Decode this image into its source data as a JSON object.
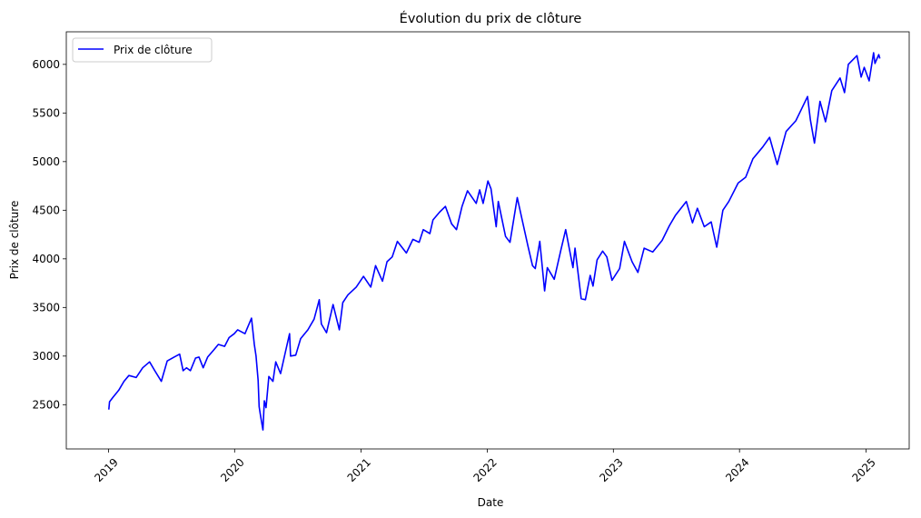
{
  "chart_data": {
    "type": "line",
    "title": "Évolution du prix de clôture",
    "xlabel": "Date",
    "ylabel": "Prix de clôture",
    "xlim": [
      "2018-09-01",
      "2025-05-06"
    ],
    "ylim": [
      2045,
      6335
    ],
    "grid": false,
    "legend_position": "top-left",
    "x_ticks": [
      "2019-01-01",
      "2020-01-01",
      "2021-01-01",
      "2022-01-01",
      "2023-01-01",
      "2024-01-01",
      "2025-01-01"
    ],
    "x_tick_labels": [
      "2019",
      "2020",
      "2021",
      "2022",
      "2023",
      "2024",
      "2025"
    ],
    "y_ticks": [
      2500,
      3000,
      3500,
      4000,
      4500,
      5000,
      5500,
      6000
    ],
    "y_tick_labels": [
      "2500",
      "3000",
      "3500",
      "4000",
      "4500",
      "5000",
      "5500",
      "6000"
    ],
    "series": [
      {
        "name": "Prix de clôture",
        "color": "#0000ff",
        "points": [
          [
            "2019-01-02",
            2450
          ],
          [
            "2019-01-04",
            2530
          ],
          [
            "2019-01-15",
            2580
          ],
          [
            "2019-01-31",
            2650
          ],
          [
            "2019-02-15",
            2740
          ],
          [
            "2019-03-01",
            2800
          ],
          [
            "2019-03-22",
            2780
          ],
          [
            "2019-04-10",
            2880
          ],
          [
            "2019-04-30",
            2940
          ],
          [
            "2019-05-15",
            2850
          ],
          [
            "2019-06-03",
            2740
          ],
          [
            "2019-06-20",
            2950
          ],
          [
            "2019-07-10",
            2990
          ],
          [
            "2019-07-26",
            3020
          ],
          [
            "2019-08-05",
            2850
          ],
          [
            "2019-08-15",
            2880
          ],
          [
            "2019-08-26",
            2850
          ],
          [
            "2019-09-10",
            2980
          ],
          [
            "2019-09-20",
            2990
          ],
          [
            "2019-10-02",
            2880
          ],
          [
            "2019-10-15",
            2990
          ],
          [
            "2019-11-01",
            3060
          ],
          [
            "2019-11-15",
            3120
          ],
          [
            "2019-12-03",
            3100
          ],
          [
            "2019-12-16",
            3190
          ],
          [
            "2019-12-31",
            3230
          ],
          [
            "2020-01-10",
            3270
          ],
          [
            "2020-01-31",
            3230
          ],
          [
            "2020-02-19",
            3390
          ],
          [
            "2020-02-27",
            3120
          ],
          [
            "2020-03-03",
            3000
          ],
          [
            "2020-03-09",
            2750
          ],
          [
            "2020-03-12",
            2480
          ],
          [
            "2020-03-16",
            2390
          ],
          [
            "2020-03-23",
            2240
          ],
          [
            "2020-03-27",
            2540
          ],
          [
            "2020-04-01",
            2470
          ],
          [
            "2020-04-09",
            2790
          ],
          [
            "2020-04-21",
            2740
          ],
          [
            "2020-04-29",
            2940
          ],
          [
            "2020-05-13",
            2820
          ],
          [
            "2020-05-27",
            3040
          ],
          [
            "2020-06-08",
            3230
          ],
          [
            "2020-06-11",
            3000
          ],
          [
            "2020-06-26",
            3010
          ],
          [
            "2020-07-10",
            3180
          ],
          [
            "2020-07-31",
            3270
          ],
          [
            "2020-08-18",
            3380
          ],
          [
            "2020-09-02",
            3580
          ],
          [
            "2020-09-08",
            3330
          ],
          [
            "2020-09-23",
            3240
          ],
          [
            "2020-10-12",
            3530
          ],
          [
            "2020-10-30",
            3270
          ],
          [
            "2020-11-09",
            3550
          ],
          [
            "2020-11-24",
            3630
          ],
          [
            "2020-12-18",
            3710
          ],
          [
            "2021-01-08",
            3820
          ],
          [
            "2021-01-29",
            3710
          ],
          [
            "2021-02-12",
            3930
          ],
          [
            "2021-03-04",
            3770
          ],
          [
            "2021-03-17",
            3970
          ],
          [
            "2021-04-01",
            4020
          ],
          [
            "2021-04-16",
            4180
          ],
          [
            "2021-05-12",
            4060
          ],
          [
            "2021-05-31",
            4200
          ],
          [
            "2021-06-18",
            4170
          ],
          [
            "2021-06-30",
            4300
          ],
          [
            "2021-07-19",
            4260
          ],
          [
            "2021-07-28",
            4400
          ],
          [
            "2021-08-16",
            4480
          ],
          [
            "2021-09-02",
            4540
          ],
          [
            "2021-09-20",
            4360
          ],
          [
            "2021-10-04",
            4300
          ],
          [
            "2021-10-20",
            4540
          ],
          [
            "2021-11-05",
            4700
          ],
          [
            "2021-11-30",
            4570
          ],
          [
            "2021-12-10",
            4710
          ],
          [
            "2021-12-20",
            4570
          ],
          [
            "2022-01-03",
            4800
          ],
          [
            "2022-01-12",
            4720
          ],
          [
            "2022-01-27",
            4330
          ],
          [
            "2022-02-02",
            4590
          ],
          [
            "2022-02-23",
            4230
          ],
          [
            "2022-03-08",
            4170
          ],
          [
            "2022-03-29",
            4630
          ],
          [
            "2022-04-12",
            4400
          ],
          [
            "2022-04-29",
            4130
          ],
          [
            "2022-05-12",
            3930
          ],
          [
            "2022-05-20",
            3900
          ],
          [
            "2022-06-02",
            4180
          ],
          [
            "2022-06-16",
            3670
          ],
          [
            "2022-06-24",
            3910
          ],
          [
            "2022-07-14",
            3790
          ],
          [
            "2022-08-02",
            4090
          ],
          [
            "2022-08-16",
            4300
          ],
          [
            "2022-09-06",
            3910
          ],
          [
            "2022-09-12",
            4110
          ],
          [
            "2022-09-30",
            3590
          ],
          [
            "2022-10-12",
            3580
          ],
          [
            "2022-10-26",
            3830
          ],
          [
            "2022-11-03",
            3720
          ],
          [
            "2022-11-15",
            3990
          ],
          [
            "2022-12-01",
            4080
          ],
          [
            "2022-12-13",
            4020
          ],
          [
            "2022-12-28",
            3780
          ],
          [
            "2023-01-19",
            3900
          ],
          [
            "2023-02-02",
            4180
          ],
          [
            "2023-02-24",
            3970
          ],
          [
            "2023-03-13",
            3860
          ],
          [
            "2023-03-31",
            4110
          ],
          [
            "2023-04-25",
            4070
          ],
          [
            "2023-05-22",
            4190
          ],
          [
            "2023-06-12",
            4340
          ],
          [
            "2023-06-30",
            4450
          ],
          [
            "2023-07-31",
            4590
          ],
          [
            "2023-08-18",
            4370
          ],
          [
            "2023-09-01",
            4520
          ],
          [
            "2023-09-21",
            4330
          ],
          [
            "2023-10-11",
            4380
          ],
          [
            "2023-10-27",
            4120
          ],
          [
            "2023-11-14",
            4500
          ],
          [
            "2023-12-01",
            4590
          ],
          [
            "2023-12-28",
            4780
          ],
          [
            "2024-01-19",
            4840
          ],
          [
            "2024-02-09",
            5030
          ],
          [
            "2024-03-08",
            5150
          ],
          [
            "2024-03-28",
            5250
          ],
          [
            "2024-04-19",
            4970
          ],
          [
            "2024-05-15",
            5310
          ],
          [
            "2024-06-12",
            5420
          ],
          [
            "2024-07-16",
            5670
          ],
          [
            "2024-07-24",
            5430
          ],
          [
            "2024-08-05",
            5190
          ],
          [
            "2024-08-21",
            5620
          ],
          [
            "2024-09-06",
            5410
          ],
          [
            "2024-09-24",
            5730
          ],
          [
            "2024-10-18",
            5860
          ],
          [
            "2024-10-31",
            5710
          ],
          [
            "2024-11-11",
            6000
          ],
          [
            "2024-12-06",
            6090
          ],
          [
            "2024-12-18",
            5870
          ],
          [
            "2024-12-27",
            5970
          ],
          [
            "2025-01-10",
            5830
          ],
          [
            "2025-01-23",
            6120
          ],
          [
            "2025-01-27",
            6010
          ],
          [
            "2025-02-07",
            6100
          ],
          [
            "2025-02-10",
            6060
          ]
        ]
      }
    ]
  }
}
